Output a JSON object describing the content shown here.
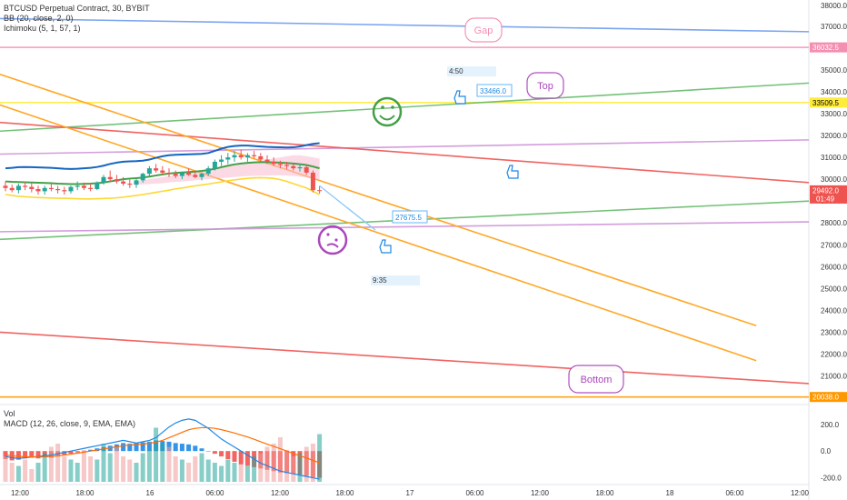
{
  "header": {
    "symbol": "BTCUSD Perpetual Contract, 30, BYBIT",
    "bb": "BB (20, close, 2, 0)",
    "ichimoku": "Ichimoku (5, 1, 57, 1)",
    "vol": "Vol",
    "macd": "MACD (12, 26, close, 9, EMA, EMA)"
  },
  "chart_data": {
    "type": "line",
    "price_axis": {
      "ticks": [
        37000,
        36000,
        35000,
        34000,
        33000,
        32000,
        31000,
        30000,
        29000,
        28000,
        27000,
        26000,
        25000,
        24000,
        23000,
        22000,
        21000
      ],
      "top_label": "38000.0",
      "tick_labels": [
        "37000.0",
        "36000.0",
        "35000.0",
        "34000.0",
        "33000.0",
        "32000.0",
        "31000.0",
        "30000.0",
        "29000.0",
        "28000.0",
        "27000.0",
        "26000.0",
        "25000.0",
        "24000.0",
        "23000.0",
        "22000.0",
        "21000.0"
      ],
      "tags": [
        {
          "label": "36032.5",
          "value": 36032.5,
          "color": "#f48fb1"
        },
        {
          "label": "33509.5",
          "value": 33509.5,
          "color": "#ffeb3b"
        },
        {
          "label": "29492.0",
          "sublabel": "01:49",
          "value": 29492,
          "color": "#ef5350"
        },
        {
          "label": "20038.0",
          "value": 20038,
          "color": "#ff9800"
        }
      ]
    },
    "macd_axis": {
      "ticks": [
        200,
        0,
        -200
      ],
      "tick_labels": [
        "200.0",
        "0.0",
        "-200.0"
      ]
    },
    "time_axis": {
      "labels": [
        "12:00",
        "18:00",
        "16",
        "06:00",
        "12:00",
        "18:00",
        "17",
        "06:00",
        "12:00",
        "18:00",
        "18",
        "06:00",
        "12:00"
      ]
    },
    "candles": [
      [
        29700,
        29900,
        29450,
        29600
      ],
      [
        29600,
        29750,
        29400,
        29500
      ],
      [
        29500,
        29800,
        29350,
        29700
      ],
      [
        29700,
        29900,
        29500,
        29650
      ],
      [
        29650,
        29850,
        29400,
        29550
      ],
      [
        29550,
        29700,
        29300,
        29450
      ],
      [
        29450,
        29700,
        29300,
        29600
      ],
      [
        29600,
        29800,
        29450,
        29550
      ],
      [
        29550,
        29700,
        29350,
        29500
      ],
      [
        29500,
        29650,
        29300,
        29450
      ],
      [
        29450,
        29700,
        29350,
        29650
      ],
      [
        29650,
        29900,
        29500,
        29700
      ],
      [
        29700,
        29850,
        29500,
        29600
      ],
      [
        29600,
        29800,
        29450,
        29550
      ],
      [
        29550,
        29900,
        29500,
        29850
      ],
      [
        29850,
        30200,
        29750,
        30100
      ],
      [
        30100,
        30400,
        29900,
        30000
      ],
      [
        30000,
        30200,
        29800,
        29900
      ],
      [
        29900,
        30100,
        29700,
        29800
      ],
      [
        29800,
        30000,
        29600,
        29750
      ],
      [
        29750,
        30000,
        29600,
        29950
      ],
      [
        29950,
        30300,
        29850,
        30250
      ],
      [
        30250,
        30600,
        30100,
        30500
      ],
      [
        30500,
        30700,
        30300,
        30400
      ],
      [
        30400,
        30600,
        30200,
        30300
      ],
      [
        30300,
        30500,
        30100,
        30250
      ],
      [
        30250,
        30400,
        30050,
        30150
      ],
      [
        30150,
        30350,
        30000,
        30300
      ],
      [
        30300,
        30500,
        30150,
        30200
      ],
      [
        30200,
        30400,
        30050,
        30100
      ],
      [
        30100,
        30300,
        29950,
        30250
      ],
      [
        30250,
        30600,
        30150,
        30500
      ],
      [
        30500,
        30900,
        30400,
        30800
      ],
      [
        30800,
        31100,
        30600,
        30900
      ],
      [
        30900,
        31200,
        30700,
        31000
      ],
      [
        31000,
        31300,
        30800,
        31100
      ],
      [
        31100,
        31350,
        30900,
        31000
      ],
      [
        31000,
        31200,
        30800,
        31100
      ],
      [
        31100,
        31300,
        30950,
        31050
      ],
      [
        31050,
        31200,
        30800,
        30900
      ],
      [
        30900,
        31100,
        30700,
        30800
      ],
      [
        30800,
        31000,
        30600,
        30700
      ],
      [
        30700,
        30850,
        30500,
        30650
      ],
      [
        30650,
        30800,
        30450,
        30600
      ],
      [
        30600,
        30750,
        30400,
        30500
      ],
      [
        30500,
        30700,
        30350,
        30550
      ],
      [
        30550,
        30650,
        30200,
        30300
      ],
      [
        30300,
        30400,
        29400,
        29500
      ],
      [
        29500,
        29700,
        29350,
        29492
      ]
    ],
    "bollinger": {
      "upper": [
        30500,
        30520,
        30550,
        30560,
        30550,
        30540,
        30530,
        30520,
        30500,
        30480,
        30470,
        30480,
        30500,
        30520,
        30560,
        30620,
        30700,
        30760,
        30800,
        30820,
        30830,
        30850,
        30900,
        30980,
        31050,
        31100,
        31120,
        31130,
        31140,
        31150,
        31160,
        31200,
        31300,
        31400,
        31480,
        31520,
        31540,
        31540,
        31520,
        31500,
        31480,
        31470,
        31460,
        31450,
        31460,
        31500,
        31560,
        31620,
        31650
      ],
      "middle": [
        29900,
        29880,
        29870,
        29860,
        29850,
        29840,
        29830,
        29820,
        29800,
        29790,
        29780,
        29780,
        29790,
        29800,
        29820,
        29850,
        29900,
        29950,
        30000,
        30030,
        30050,
        30080,
        30120,
        30170,
        30220,
        30260,
        30290,
        30310,
        30330,
        30350,
        30380,
        30420,
        30480,
        30550,
        30620,
        30680,
        30720,
        30750,
        30770,
        30780,
        30780,
        30770,
        30760,
        30740,
        30720,
        30690,
        30650,
        30580,
        30500
      ],
      "lower": [
        29300,
        29260,
        29220,
        29200,
        29180,
        29160,
        29150,
        29140,
        29130,
        29130,
        29120,
        29110,
        29100,
        29100,
        29110,
        29120,
        29130,
        29150,
        29180,
        29220,
        29260,
        29300,
        29350,
        29400,
        29450,
        29500,
        29560,
        29600,
        29650,
        29700,
        29740,
        29780,
        29830,
        29880,
        29930,
        29970,
        30010,
        30040,
        30060,
        30070,
        30060,
        30040,
        29980,
        29900,
        29800,
        29700,
        29600,
        29450,
        29300
      ]
    },
    "ichimoku_cloud": {
      "start": 20,
      "end": 48,
      "top": [
        29900,
        29950,
        30000,
        30050,
        30100,
        30150,
        30200,
        30250,
        30300,
        30350,
        30400,
        30450,
        30500,
        30550,
        30600,
        30650,
        30700,
        30750,
        30800,
        30850,
        30900,
        30950,
        31000,
        31050,
        31100,
        31100,
        31050,
        31000,
        30950
      ],
      "bottom": [
        29750,
        29760,
        29780,
        29800,
        29820,
        29850,
        29880,
        29900,
        29920,
        29950,
        29980,
        30000,
        30020,
        30050,
        30080,
        30100,
        30120,
        30140,
        30150,
        30160,
        30170,
        30180,
        30180,
        30170,
        30150,
        30120,
        30080,
        30030,
        29980
      ]
    },
    "trendlines": [
      {
        "name": "blue",
        "color": "#6c9bef",
        "from": [
          0,
          37350
        ],
        "to": [
          1,
          36750
        ]
      },
      {
        "name": "pink",
        "color": "#f48fb1",
        "from": [
          0,
          36032.5
        ],
        "to": [
          1,
          36032.5
        ]
      },
      {
        "name": "yellow",
        "color": "#ffeb3b",
        "from": [
          0,
          33509.5
        ],
        "to": [
          1,
          33509.5
        ]
      },
      {
        "name": "green-upper",
        "color": "#66bb6a",
        "from": [
          0,
          32200
        ],
        "to": [
          1,
          34400
        ]
      },
      {
        "name": "violet-upper",
        "color": "#ce93d8",
        "from": [
          0,
          31150
        ],
        "to": [
          1,
          31800
        ]
      },
      {
        "name": "red-upper",
        "color": "#ef5350",
        "from": [
          0,
          32600
        ],
        "to": [
          1,
          29850
        ]
      },
      {
        "name": "green-lower",
        "color": "#66bb6a",
        "from": [
          0,
          27250
        ],
        "to": [
          1,
          29000
        ]
      },
      {
        "name": "violet-lower",
        "color": "#ce93d8",
        "from": [
          0,
          27600
        ],
        "to": [
          1,
          28050
        ]
      },
      {
        "name": "red-lower",
        "color": "#ef5350",
        "from": [
          0,
          23000
        ],
        "to": [
          1,
          20650
        ]
      },
      {
        "name": "orange-bottom",
        "color": "#ff9800",
        "from": [
          0,
          20038
        ],
        "to": [
          1,
          20038
        ]
      }
    ],
    "orange_diagonals": [
      {
        "from": [
          0,
          34800
        ],
        "to": [
          0.935,
          23300
        ]
      },
      {
        "from": [
          0,
          33400
        ],
        "to": [
          0.935,
          21700
        ]
      }
    ],
    "annotations": {
      "gap": "Gap",
      "top": "Top",
      "bottom": "Bottom",
      "price_high": "33466.0",
      "price_low": "27675.5",
      "time_high": "4:50",
      "time_low": "9:35"
    },
    "volume": [
      40,
      30,
      25,
      35,
      20,
      30,
      45,
      55,
      60,
      40,
      35,
      30,
      50,
      40,
      35,
      60,
      45,
      55,
      40,
      35,
      30,
      45,
      50,
      85,
      60,
      55,
      40,
      35,
      30,
      40,
      45,
      35,
      30,
      25,
      35,
      30,
      28,
      25,
      40,
      45,
      55,
      60,
      70,
      50,
      40,
      45,
      55,
      60,
      75
    ],
    "volume_up": [
      0,
      0,
      1,
      0,
      0,
      1,
      1,
      0,
      0,
      0,
      1,
      1,
      0,
      0,
      1,
      1,
      1,
      0,
      0,
      0,
      1,
      1,
      1,
      1,
      1,
      0,
      0,
      1,
      0,
      0,
      1,
      1,
      1,
      1,
      1,
      1,
      0,
      1,
      1,
      0,
      0,
      0,
      0,
      0,
      0,
      1,
      0,
      0,
      1
    ],
    "macd_hist": [
      -60,
      -70,
      -65,
      -55,
      -50,
      -55,
      -45,
      -50,
      -40,
      -30,
      -20,
      -10,
      0,
      10,
      20,
      30,
      40,
      50,
      60,
      55,
      60,
      65,
      70,
      80,
      75,
      70,
      60,
      55,
      50,
      40,
      20,
      0,
      -20,
      -40,
      -60,
      -80,
      -100,
      -110,
      -120,
      -130,
      -140,
      -150,
      -160,
      -165,
      -170,
      -175,
      -185,
      -195,
      -200
    ],
    "macd_line": [
      -40,
      -50,
      -55,
      -50,
      -45,
      -40,
      -35,
      -30,
      -20,
      -10,
      0,
      10,
      20,
      30,
      40,
      50,
      60,
      70,
      80,
      70,
      60,
      70,
      80,
      100,
      140,
      180,
      210,
      230,
      240,
      230,
      200,
      170,
      130,
      90,
      60,
      30,
      0,
      -30,
      -60,
      -90,
      -110,
      -130,
      -150,
      -160,
      -170,
      -180,
      -190,
      -200,
      -210
    ],
    "signal_line": [
      -30,
      -35,
      -40,
      -42,
      -44,
      -44,
      -43,
      -40,
      -36,
      -30,
      -24,
      -16,
      -8,
      0,
      8,
      16,
      24,
      32,
      40,
      45,
      48,
      52,
      58,
      66,
      80,
      100,
      120,
      140,
      160,
      170,
      175,
      175,
      170,
      160,
      148,
      135,
      120,
      105,
      88,
      70,
      52,
      35,
      18,
      0,
      -18,
      -35,
      -52,
      -70,
      -88
    ]
  }
}
